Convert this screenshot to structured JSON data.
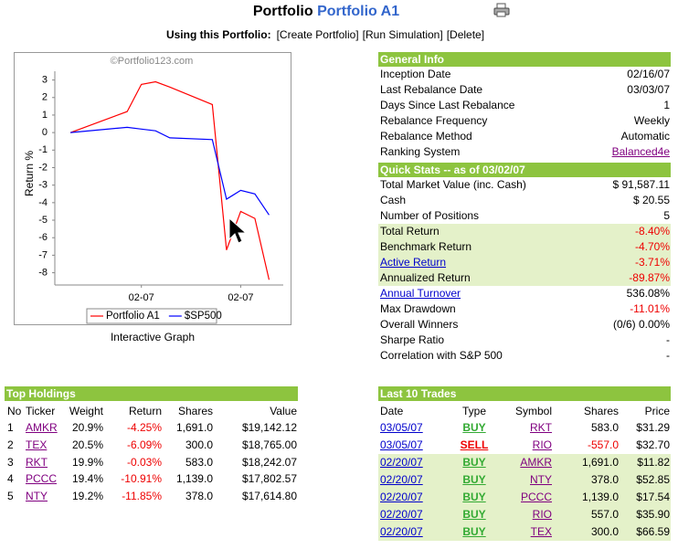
{
  "header": {
    "title": "Portfolio",
    "portfolio_name": "Portfolio A1",
    "toolbar_label": "Using this Portfolio:",
    "actions": [
      "[Create Portfolio]",
      "[Run Simulation]",
      "[Delete]"
    ]
  },
  "chart_data": {
    "type": "line",
    "watermark": "©Portfolio123.com",
    "y_label": "Return %",
    "x": [
      0,
      4,
      5,
      6,
      7,
      10,
      11,
      12,
      13,
      14
    ],
    "series": [
      {
        "name": "Portfolio A1",
        "color": "#ff0000",
        "values": [
          0,
          1.2,
          2.75,
          2.9,
          2.6,
          1.6,
          -6.7,
          -4.5,
          -4.9,
          -8.4
        ]
      },
      {
        "name": "$SP500",
        "color": "#0000ff",
        "values": [
          0,
          0.3,
          0.2,
          0.1,
          -0.3,
          -0.4,
          -3.8,
          -3.3,
          -3.5,
          -4.7
        ]
      }
    ],
    "xlim": [
      -1.1,
      15
    ],
    "xticks": [
      {
        "value": 5,
        "label": "02-07"
      },
      {
        "value": 12,
        "label": "02-07"
      }
    ],
    "ylim": [
      -8.7,
      3.5
    ],
    "yticks": [
      -8,
      -7,
      -6,
      -5,
      -4,
      -3,
      -2,
      -1,
      0,
      1,
      2,
      3
    ],
    "legend": "bottom"
  },
  "graph_caption": "Interactive Graph",
  "general_info": {
    "title": "General Info",
    "rows": [
      [
        "Inception Date",
        "02/16/07"
      ],
      [
        "Last Rebalance Date",
        "03/03/07"
      ],
      [
        "Days Since Last Rebalance",
        "1"
      ],
      [
        "Rebalance Frequency",
        "Weekly"
      ],
      [
        "Rebalance Method",
        "Automatic"
      ],
      [
        "Ranking System",
        "Balanced4e"
      ]
    ]
  },
  "quick_stats": {
    "title": "Quick Stats -- as of 03/02/07",
    "rows": [
      [
        "Total Market Value (inc. Cash)",
        "$ 91,587.11"
      ],
      [
        "Cash",
        "$ 20.55"
      ],
      [
        "Number of Positions",
        "5"
      ],
      [
        "Total Return",
        "-8.40%"
      ],
      [
        "Benchmark Return",
        "-4.70%"
      ],
      [
        "Active Return",
        "-3.71%"
      ],
      [
        "Annualized Return",
        "-89.87%"
      ],
      [
        "Annual Turnover",
        "536.08%"
      ],
      [
        "Max Drawdown",
        "-11.01%"
      ],
      [
        "Overall Winners",
        "(0/6) 0.00%"
      ],
      [
        "Sharpe Ratio",
        "-"
      ],
      [
        "Correlation with S&P 500",
        "-"
      ]
    ]
  },
  "top_holdings": {
    "title": "Top Holdings",
    "columns": [
      "No",
      "Ticker",
      "Weight",
      "Return",
      "Shares",
      "Value"
    ],
    "rows": [
      [
        "1",
        "AMKR",
        "20.9%",
        "-4.25%",
        "1,691.0",
        "$19,142.12"
      ],
      [
        "2",
        "TEX",
        "20.5%",
        "-6.09%",
        "300.0",
        "$18,765.00"
      ],
      [
        "3",
        "RKT",
        "19.9%",
        "-0.03%",
        "583.0",
        "$18,242.07"
      ],
      [
        "4",
        "PCCC",
        "19.4%",
        "-10.91%",
        "1,139.0",
        "$17,802.57"
      ],
      [
        "5",
        "NTY",
        "19.2%",
        "-11.85%",
        "378.0",
        "$17,614.80"
      ]
    ]
  },
  "last_trades": {
    "title": "Last 10 Trades",
    "columns": [
      "Date",
      "Type",
      "Symbol",
      "Shares",
      "Price"
    ],
    "rows": [
      [
        "03/05/07",
        "BUY",
        "RKT",
        "583.0",
        "$31.29"
      ],
      [
        "03/05/07",
        "SELL",
        "RIO",
        "-557.0",
        "$32.70"
      ],
      [
        "02/20/07",
        "BUY",
        "AMKR",
        "1,691.0",
        "$11.82"
      ],
      [
        "02/20/07",
        "BUY",
        "NTY",
        "378.0",
        "$52.85"
      ],
      [
        "02/20/07",
        "BUY",
        "PCCC",
        "1,139.0",
        "$17.54"
      ],
      [
        "02/20/07",
        "BUY",
        "RIO",
        "557.0",
        "$35.90"
      ],
      [
        "02/20/07",
        "BUY",
        "TEX",
        "300.0",
        "$66.59"
      ]
    ]
  }
}
